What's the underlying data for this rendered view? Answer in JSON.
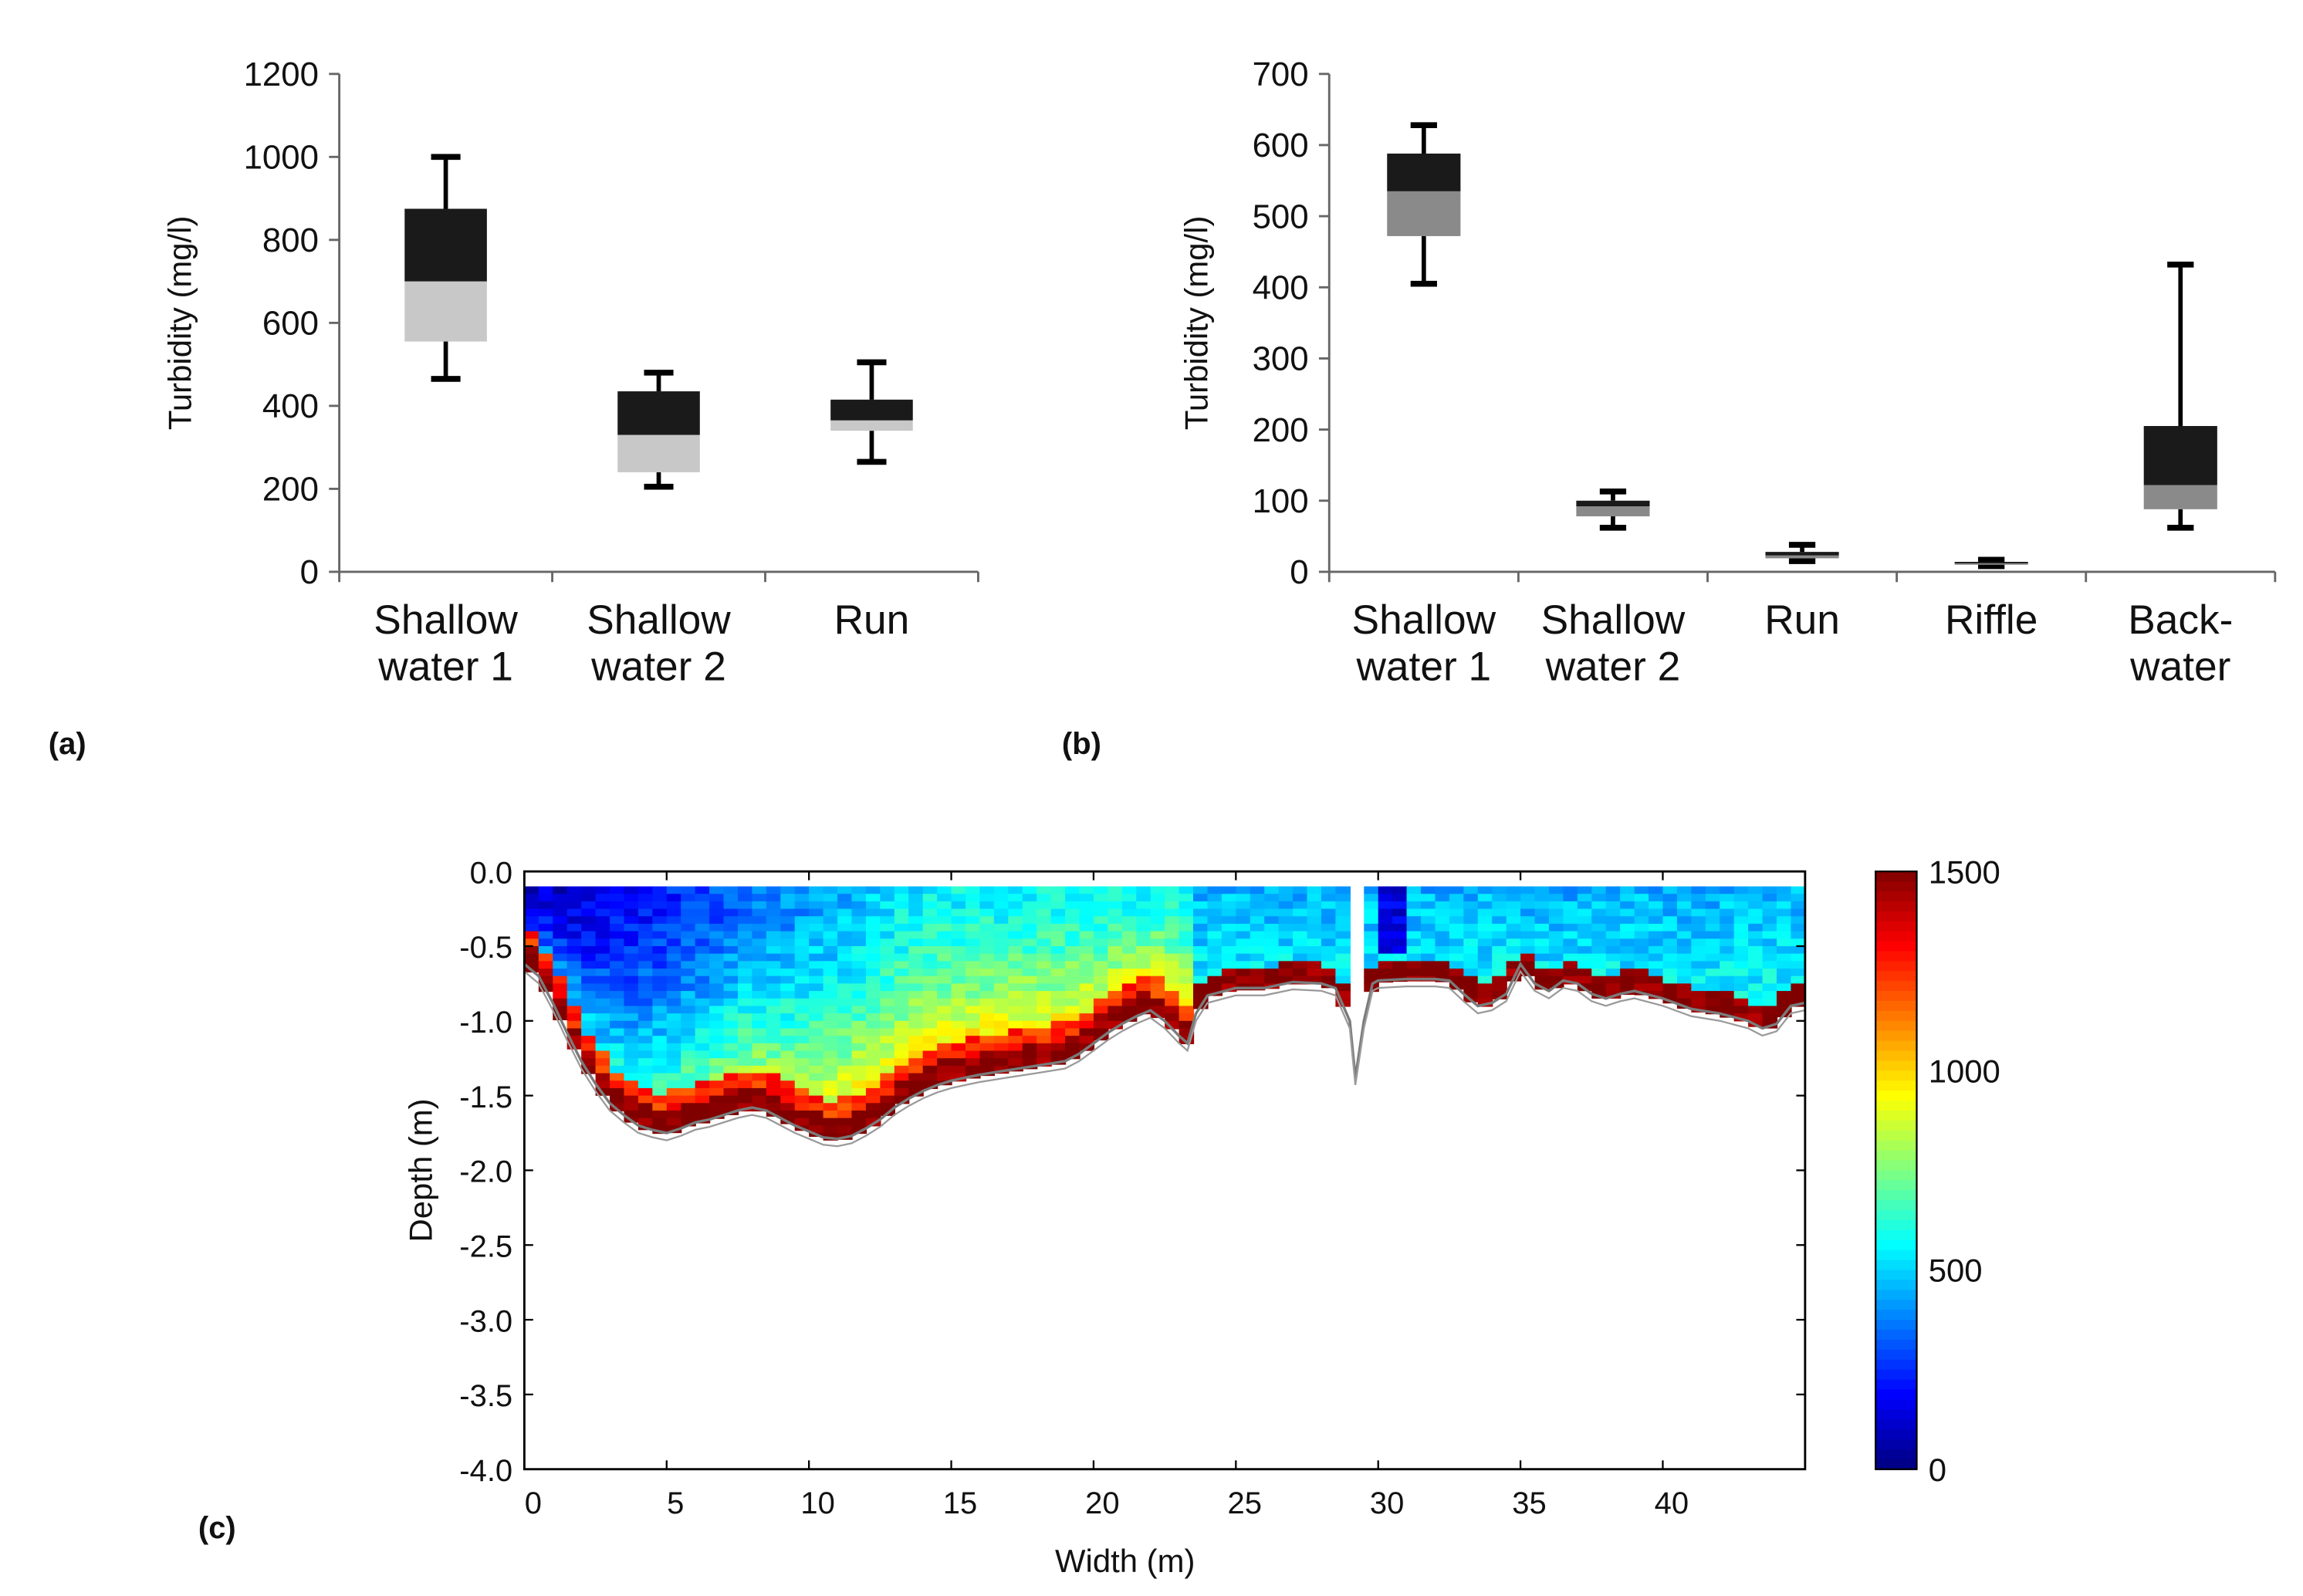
{
  "panel_labels": {
    "a": "(a)",
    "b": "(b)",
    "c": "(c)"
  },
  "chart_data": [
    {
      "id": "a",
      "type": "box",
      "ylabel": "Turbidity (mg/l)",
      "ylim": [
        0,
        1200
      ],
      "yticks": [
        0,
        200,
        400,
        600,
        800,
        1000,
        1200
      ],
      "categories": [
        [
          "Shallow",
          "water 1"
        ],
        [
          "Shallow",
          "water 2"
        ],
        [
          "Run"
        ]
      ],
      "boxes": [
        {
          "min": 465,
          "q1": 555,
          "median": 700,
          "q3": 875,
          "max": 1000
        },
        {
          "min": 205,
          "q1": 240,
          "median": 330,
          "q3": 435,
          "max": 480
        },
        {
          "min": 265,
          "q1": 340,
          "median": 365,
          "q3": 415,
          "max": 505
        }
      ],
      "colors": {
        "upper": "#1a1a1a",
        "lower": "#c8c8c8"
      }
    },
    {
      "id": "b",
      "type": "box",
      "ylabel": "Turbidity (mg/l)",
      "ylim": [
        0,
        700
      ],
      "yticks": [
        0,
        100,
        200,
        300,
        400,
        500,
        600,
        700
      ],
      "categories": [
        [
          "Shallow",
          "water 1"
        ],
        [
          "Shallow",
          "water 2"
        ],
        [
          "Run"
        ],
        [
          "Riffle"
        ],
        [
          "Back-",
          "water"
        ]
      ],
      "boxes": [
        {
          "min": 405,
          "q1": 472,
          "median": 535,
          "q3": 588,
          "max": 628
        },
        {
          "min": 62,
          "q1": 78,
          "median": 92,
          "q3": 100,
          "max": 113
        },
        {
          "min": 15,
          "q1": 19,
          "median": 23,
          "q3": 28,
          "max": 38
        },
        {
          "min": 8,
          "q1": 10,
          "median": 12,
          "q3": 14,
          "max": 17
        },
        {
          "min": 62,
          "q1": 88,
          "median": 122,
          "q3": 205,
          "max": 432
        }
      ],
      "colors": {
        "upper": "#1a1a1a",
        "lower": "#8a8a8a"
      }
    },
    {
      "id": "c",
      "type": "heatmap",
      "xlabel": "Width (m)",
      "ylabel": "Depth (m)",
      "xlim": [
        0,
        45
      ],
      "ylim": [
        -4.0,
        0.0
      ],
      "xticks": [
        0,
        5,
        10,
        15,
        20,
        25,
        30,
        35,
        40
      ],
      "yticks": [
        "0.0",
        "-0.5",
        "-1.0",
        "-1.5",
        "-2.0",
        "-2.5",
        "-3.0",
        "-3.5",
        "-4.0"
      ],
      "colorbar": {
        "min": 0,
        "max": 1500,
        "ticks": [
          0,
          500,
          1000,
          1500
        ],
        "colormap": "jet"
      },
      "surface_depth": -0.1,
      "gap_x": [
        29.0,
        29.4
      ],
      "bed_profile": [
        [
          0,
          -0.62
        ],
        [
          0.5,
          -0.7
        ],
        [
          1,
          -0.88
        ],
        [
          1.5,
          -1.08
        ],
        [
          2,
          -1.27
        ],
        [
          2.5,
          -1.42
        ],
        [
          3,
          -1.55
        ],
        [
          3.5,
          -1.63
        ],
        [
          4,
          -1.7
        ],
        [
          4.5,
          -1.73
        ],
        [
          5,
          -1.75
        ],
        [
          5.5,
          -1.72
        ],
        [
          6,
          -1.68
        ],
        [
          6.5,
          -1.66
        ],
        [
          7,
          -1.63
        ],
        [
          7.5,
          -1.6
        ],
        [
          8,
          -1.58
        ],
        [
          8.5,
          -1.6
        ],
        [
          9,
          -1.65
        ],
        [
          9.5,
          -1.7
        ],
        [
          10,
          -1.74
        ],
        [
          10.5,
          -1.78
        ],
        [
          11,
          -1.79
        ],
        [
          11.5,
          -1.77
        ],
        [
          12,
          -1.72
        ],
        [
          12.5,
          -1.66
        ],
        [
          13,
          -1.58
        ],
        [
          13.5,
          -1.52
        ],
        [
          14,
          -1.47
        ],
        [
          14.5,
          -1.43
        ],
        [
          15,
          -1.4
        ],
        [
          15.5,
          -1.38
        ],
        [
          16,
          -1.36
        ],
        [
          17,
          -1.33
        ],
        [
          18,
          -1.3
        ],
        [
          19,
          -1.27
        ],
        [
          19.5,
          -1.22
        ],
        [
          20,
          -1.15
        ],
        [
          20.5,
          -1.08
        ],
        [
          21,
          -1.02
        ],
        [
          21.5,
          -0.97
        ],
        [
          22,
          -0.93
        ],
        [
          22.5,
          -1.0
        ],
        [
          23,
          -1.1
        ],
        [
          23.3,
          -1.15
        ],
        [
          23.6,
          -0.95
        ],
        [
          24,
          -0.83
        ],
        [
          25,
          -0.78
        ],
        [
          26,
          -0.78
        ],
        [
          27,
          -0.74
        ],
        [
          28,
          -0.75
        ],
        [
          28.5,
          -0.78
        ],
        [
          29,
          -1.0
        ],
        [
          29.2,
          -1.38
        ],
        [
          29.5,
          -1.0
        ],
        [
          29.8,
          -0.75
        ],
        [
          30,
          -0.73
        ],
        [
          31,
          -0.72
        ],
        [
          32,
          -0.72
        ],
        [
          32.5,
          -0.73
        ],
        [
          33,
          -0.82
        ],
        [
          33.5,
          -0.9
        ],
        [
          34,
          -0.88
        ],
        [
          34.5,
          -0.82
        ],
        [
          35,
          -0.62
        ],
        [
          35.5,
          -0.75
        ],
        [
          36,
          -0.8
        ],
        [
          36.5,
          -0.73
        ],
        [
          37,
          -0.75
        ],
        [
          37.5,
          -0.82
        ],
        [
          38,
          -0.85
        ],
        [
          38.5,
          -0.82
        ],
        [
          39,
          -0.8
        ],
        [
          40,
          -0.85
        ],
        [
          41,
          -0.92
        ],
        [
          42,
          -0.95
        ],
        [
          43,
          -1.0
        ],
        [
          43.5,
          -1.05
        ],
        [
          44,
          -1.02
        ],
        [
          44.5,
          -0.9
        ],
        [
          45,
          -0.88
        ]
      ]
    }
  ]
}
